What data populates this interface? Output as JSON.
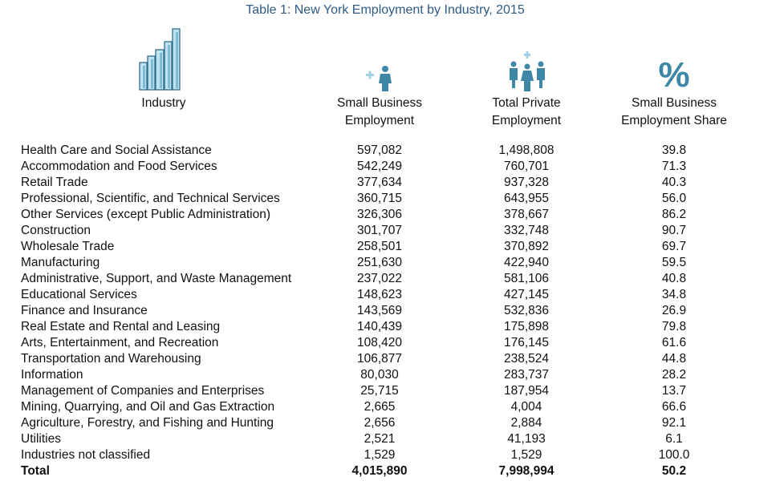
{
  "caption": "Table 1: New York Employment by Industry, 2015",
  "colors": {
    "caption": "#2e5a84",
    "icon_primary": "#3f87a6",
    "icon_light": "#9fd0e6"
  },
  "headers": {
    "industry": "Industry",
    "small_business_employment": [
      "Small Business",
      "Employment"
    ],
    "total_private_employment": [
      "Total Private",
      "Employment"
    ],
    "small_business_share": [
      "Small Business",
      "Employment Share"
    ]
  },
  "icons": {
    "industry": "buildings-icon",
    "small_business": "single-person-plus-icon",
    "total_private": "group-of-people-plus-icon",
    "share": "percent-icon",
    "percent_symbol": "%"
  },
  "rows": [
    {
      "industry": "Health Care and Social Assistance",
      "small_business": "597,082",
      "total_private": "1,498,808",
      "share": "39.8"
    },
    {
      "industry": "Accommodation and Food Services",
      "small_business": "542,249",
      "total_private": "760,701",
      "share": "71.3"
    },
    {
      "industry": "Retail Trade",
      "small_business": "377,634",
      "total_private": "937,328",
      "share": "40.3"
    },
    {
      "industry": "Professional, Scientific, and Technical Services",
      "small_business": "360,715",
      "total_private": "643,955",
      "share": "56.0"
    },
    {
      "industry": "Other Services (except Public Administration)",
      "small_business": "326,306",
      "total_private": "378,667",
      "share": "86.2"
    },
    {
      "industry": "Construction",
      "small_business": "301,707",
      "total_private": "332,748",
      "share": "90.7"
    },
    {
      "industry": "Wholesale Trade",
      "small_business": "258,501",
      "total_private": "370,892",
      "share": "69.7"
    },
    {
      "industry": "Manufacturing",
      "small_business": "251,630",
      "total_private": "422,940",
      "share": "59.5"
    },
    {
      "industry": "Administrative, Support, and Waste Management",
      "small_business": "237,022",
      "total_private": "581,106",
      "share": "40.8"
    },
    {
      "industry": "Educational Services",
      "small_business": "148,623",
      "total_private": "427,145",
      "share": "34.8"
    },
    {
      "industry": "Finance and Insurance",
      "small_business": "143,569",
      "total_private": "532,836",
      "share": "26.9"
    },
    {
      "industry": "Real Estate and Rental and Leasing",
      "small_business": "140,439",
      "total_private": "175,898",
      "share": "79.8"
    },
    {
      "industry": "Arts, Entertainment, and Recreation",
      "small_business": "108,420",
      "total_private": "176,145",
      "share": "61.6"
    },
    {
      "industry": "Transportation and Warehousing",
      "small_business": "106,877",
      "total_private": "238,524",
      "share": "44.8"
    },
    {
      "industry": "Information",
      "small_business": "80,030",
      "total_private": "283,737",
      "share": "28.2"
    },
    {
      "industry": "Management of Companies and Enterprises",
      "small_business": "25,715",
      "total_private": "187,954",
      "share": "13.7"
    },
    {
      "industry": "Mining, Quarrying, and Oil and Gas Extraction",
      "small_business": "2,665",
      "total_private": "4,004",
      "share": "66.6"
    },
    {
      "industry": "Agriculture, Forestry, and Fishing and Hunting",
      "small_business": "2,656",
      "total_private": "2,884",
      "share": "92.1"
    },
    {
      "industry": "Utilities",
      "small_business": "2,521",
      "total_private": "41,193",
      "share": "6.1"
    },
    {
      "industry": "Industries not classified",
      "small_business": "1,529",
      "total_private": "1,529",
      "share": "100.0"
    }
  ],
  "total": {
    "industry": "Total",
    "small_business": "4,015,890",
    "total_private": "7,998,994",
    "share": "50.2"
  }
}
